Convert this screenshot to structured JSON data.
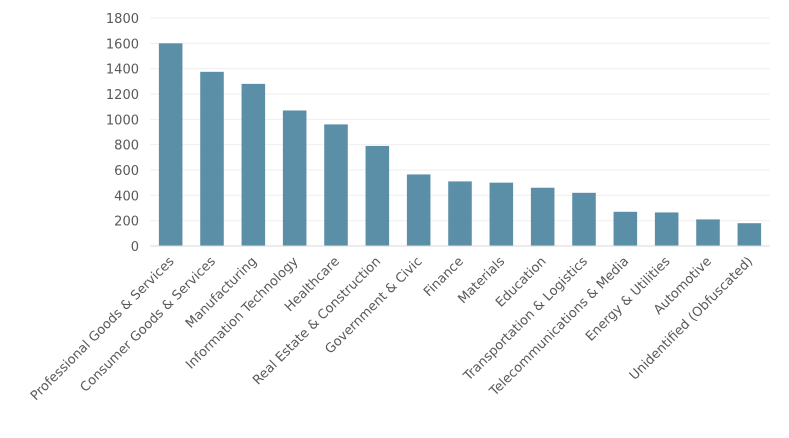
{
  "chart_data": {
    "type": "bar",
    "categories": [
      "Professional Goods & Services",
      "Consumer Goods & Services",
      "Manufacturing",
      "Information Technology",
      "Healthcare",
      "Real Estate & Construction",
      "Government & Civic",
      "Finance",
      "Materials",
      "Education",
      "Transportation & Logistics",
      "Telecommunications & Media",
      "Energy & Utilities",
      "Automotive",
      "Unidentified (Obfuscated)"
    ],
    "values": [
      1600,
      1375,
      1280,
      1070,
      960,
      790,
      565,
      510,
      500,
      460,
      420,
      270,
      265,
      210,
      180
    ],
    "yticks": [
      "0",
      "200",
      "400",
      "600",
      "800",
      "1000",
      "1200",
      "1400",
      "1600",
      "1800"
    ],
    "ylim": [
      0,
      1800
    ],
    "grid": true,
    "bar_color": "#5b8fa8",
    "title": "",
    "xlabel": "",
    "ylabel": ""
  }
}
